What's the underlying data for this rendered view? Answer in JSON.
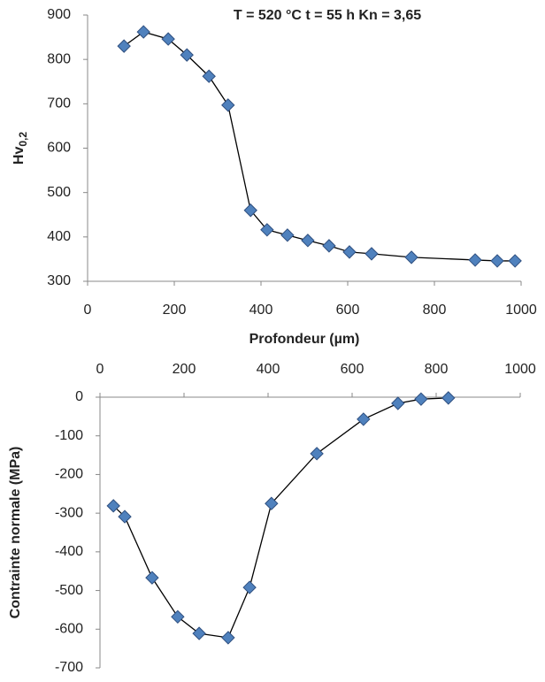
{
  "chart_data": [
    {
      "type": "line",
      "title": "T = 520 °C t = 55 h Kn = 3,65",
      "x_label": "Profondeur (µm)",
      "y_label": {
        "main": "Hv",
        "subscript": "0,2"
      },
      "x": [
        84,
        129,
        186,
        229,
        280,
        324,
        376,
        414,
        461,
        508,
        557,
        604,
        655,
        747,
        894,
        945,
        986
      ],
      "series": [
        {
          "color": "#4f81bd",
          "values": [
            830,
            862,
            846,
            810,
            762,
            697,
            460,
            416,
            404,
            392,
            380,
            366,
            362,
            354,
            348,
            346,
            346
          ]
        }
      ],
      "xlim": [
        0,
        1000
      ],
      "xticks": [
        0,
        200,
        400,
        600,
        800,
        1000
      ],
      "ylim": [
        300,
        900
      ],
      "yticks": [
        300,
        400,
        500,
        600,
        700,
        800,
        900
      ],
      "x_axis_position": "bottom",
      "grid": false
    },
    {
      "type": "line",
      "y_label": "Contrainte normale (MPa)",
      "x": [
        32,
        59,
        124,
        185,
        236,
        305,
        356,
        408,
        516,
        627,
        709,
        764,
        829
      ],
      "series": [
        {
          "color": "#4f81bd",
          "values": [
            -281,
            -309,
            -467,
            -568,
            -611,
            -622,
            -492,
            -275,
            -146,
            -57,
            -16,
            -5,
            -2
          ]
        }
      ],
      "xlim": [
        0,
        1000
      ],
      "xticks": [
        0,
        200,
        400,
        600,
        800,
        1000
      ],
      "ylim": [
        -700,
        0
      ],
      "yticks": [
        -700,
        -600,
        -500,
        -400,
        -300,
        -200,
        -100,
        0
      ],
      "x_axis_position": "top",
      "grid": false
    }
  ]
}
